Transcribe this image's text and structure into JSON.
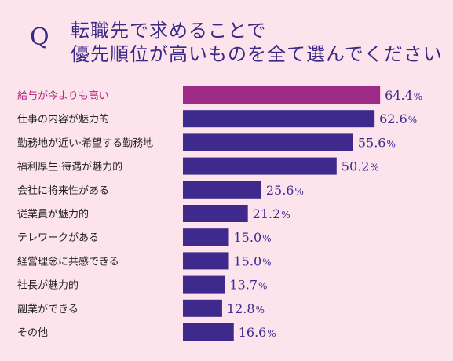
{
  "question": {
    "mark": "Q",
    "line1": "転職先で求めることで",
    "line2": "優先順位が高いものを全て選んでください"
  },
  "colors": {
    "background": "#fde3ec",
    "highlight": "#9c2a86",
    "bar": "#3d2a8c",
    "label_text": "#222222",
    "highlight_text": "#b0257f",
    "value_text": "#3d2a8c"
  },
  "chart_data": {
    "type": "bar",
    "orientation": "horizontal",
    "categories": [
      "給与が今よりも高い",
      "仕事の内容が魅力的",
      "勤務地が近い·希望する勤務地",
      "福利厚生·待遇が魅力的",
      "会社に将来性がある",
      "従業員が魅力的",
      "テレワークがある",
      "経営理念に共感できる",
      "社長が魅力的",
      "副業ができる",
      "その他"
    ],
    "values": [
      64.4,
      62.6,
      55.6,
      50.2,
      25.6,
      21.2,
      15.0,
      15.0,
      13.7,
      12.8,
      16.6
    ],
    "value_labels": [
      "64.4",
      "62.6",
      "55.6",
      "50.2",
      "25.6",
      "21.2",
      "15.0",
      "15.0",
      "13.7",
      "12.8",
      "16.6"
    ],
    "unit": "%",
    "highlight_index": 0
  }
}
